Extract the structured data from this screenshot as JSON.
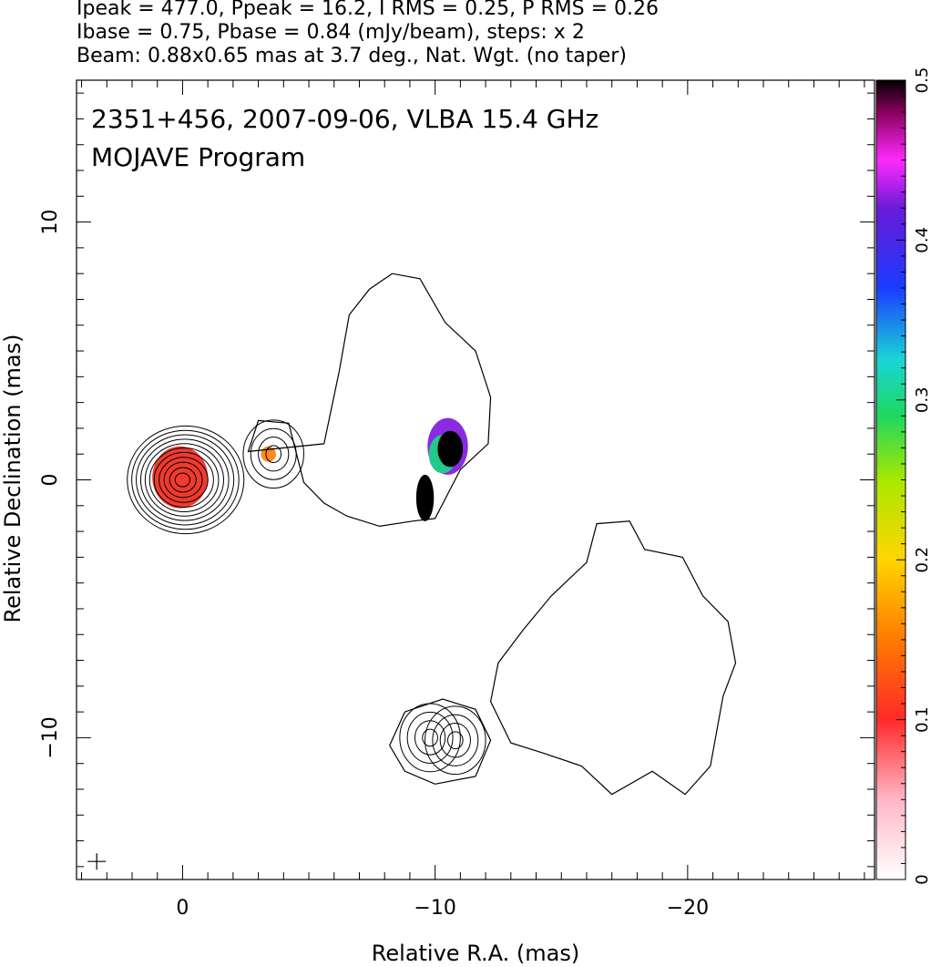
{
  "header": {
    "line1": "Ipeak = 477.0, Ppeak = 16.2, I RMS = 0.25, P RMS = 0.26",
    "line2": "Ibase = 0.75, Pbase = 0.84 (mJy/beam), steps: x 2",
    "line3": "Beam: 0.88x0.65 mas at 3.7 deg., Nat. Wgt. (no taper)"
  },
  "chart_data": {
    "type": "contour",
    "source_label": "2351+456, 2007-09-06, VLBA 15.4 GHz",
    "program_label": "MOJAVE Program",
    "xlabel": "Relative R.A. (mas)",
    "ylabel": "Relative Declination (mas)",
    "xlim": [
      4.2,
      -27.4
    ],
    "ylim": [
      -15.5,
      15.5
    ],
    "x_ticks": [
      {
        "value": 0,
        "label": "0"
      },
      {
        "value": -10,
        "label": "−10"
      },
      {
        "value": -20,
        "label": "−20"
      }
    ],
    "y_ticks": [
      {
        "value": 10,
        "label": "10"
      },
      {
        "value": 0,
        "label": "0"
      },
      {
        "value": -10,
        "label": "−10"
      }
    ],
    "colorbar": {
      "range": [
        0,
        0.5
      ],
      "ticks": [
        {
          "value": 0,
          "label": "0"
        },
        {
          "value": 0.1,
          "label": "0.1"
        },
        {
          "value": 0.2,
          "label": "0.2"
        },
        {
          "value": 0.3,
          "label": "0.3"
        },
        {
          "value": 0.4,
          "label": "0.4"
        },
        {
          "value": 0.5,
          "label": "0.5"
        }
      ]
    },
    "core": {
      "x": 0,
      "y": 0,
      "radii": [
        0.28,
        0.5,
        0.72,
        0.92,
        1.12,
        1.3,
        1.48,
        1.66,
        1.84,
        2.02,
        2.2
      ]
    },
    "knots": [
      {
        "x": -3.6,
        "y": 1.0,
        "radii": [
          0.3,
          0.6,
          0.9,
          1.2
        ]
      },
      {
        "x": -9.8,
        "y": -10.0,
        "radii": [
          0.3,
          0.6,
          0.9,
          1.2
        ]
      },
      {
        "x": -10.8,
        "y": -10.1,
        "radii": [
          0.3,
          0.6,
          0.9,
          1.2
        ]
      }
    ],
    "extended_emission": [
      {
        "name": "upper-jet",
        "points": [
          [
            -5.6,
            1.4
          ],
          [
            -6.2,
            4.2
          ],
          [
            -6.6,
            6.4
          ],
          [
            -7.4,
            7.4
          ],
          [
            -8.3,
            8.0
          ],
          [
            -9.4,
            7.8
          ],
          [
            -10.4,
            6.1
          ],
          [
            -11.6,
            5.0
          ],
          [
            -12.2,
            3.2
          ],
          [
            -12.1,
            1.4
          ],
          [
            -11.0,
            0.4
          ],
          [
            -10.0,
            -1.5
          ],
          [
            -9.1,
            -1.6
          ],
          [
            -7.8,
            -1.8
          ],
          [
            -6.5,
            -1.4
          ],
          [
            -5.6,
            -0.9
          ],
          [
            -4.8,
            -0.1
          ],
          [
            -4.2,
            2.2
          ],
          [
            -3.0,
            2.3
          ],
          [
            -2.6,
            1.1
          ]
        ]
      },
      {
        "name": "lower-jet",
        "points": [
          [
            -12.5,
            -7.1
          ],
          [
            -13.5,
            -5.8
          ],
          [
            -14.6,
            -4.5
          ],
          [
            -16.0,
            -3.2
          ],
          [
            -16.4,
            -1.7
          ],
          [
            -17.7,
            -1.6
          ],
          [
            -18.3,
            -2.7
          ],
          [
            -19.8,
            -3.0
          ],
          [
            -20.6,
            -4.5
          ],
          [
            -21.6,
            -5.5
          ],
          [
            -21.9,
            -7.1
          ],
          [
            -21.4,
            -8.4
          ],
          [
            -20.9,
            -11.1
          ],
          [
            -19.9,
            -12.2
          ],
          [
            -18.6,
            -11.3
          ],
          [
            -17.0,
            -12.2
          ],
          [
            -15.8,
            -11.1
          ],
          [
            -14.3,
            -10.6
          ],
          [
            -13.0,
            -10.2
          ],
          [
            -12.2,
            -8.6
          ]
        ]
      },
      {
        "name": "lower-knot-envelope",
        "points": [
          [
            -8.2,
            -10.3
          ],
          [
            -8.8,
            -9.0
          ],
          [
            -10.3,
            -8.5
          ],
          [
            -11.6,
            -8.9
          ],
          [
            -12.2,
            -10.1
          ],
          [
            -11.6,
            -11.5
          ],
          [
            -10.0,
            -11.8
          ],
          [
            -8.8,
            -11.3
          ]
        ]
      }
    ],
    "polarization_regions": [
      {
        "name": "core-polarization",
        "x": 0.1,
        "y": 0.1,
        "rx": 1.1,
        "ry": 1.2,
        "color": "#f03a30"
      },
      {
        "name": "knot-polarization",
        "x": -3.4,
        "y": 1.0,
        "rx": 0.3,
        "ry": 0.3,
        "color": "#ff8c1a"
      },
      {
        "name": "jet-polarization-outer",
        "x": -10.5,
        "y": 1.3,
        "rx": 0.8,
        "ry": 1.1,
        "color": "#8a2be2"
      },
      {
        "name": "jet-polarization-inner",
        "x": -10.3,
        "y": 1.0,
        "rx": 0.55,
        "ry": 0.75,
        "color": "#22c98a"
      },
      {
        "name": "jet-polarization-core",
        "x": -10.6,
        "y": 1.2,
        "rx": 0.5,
        "ry": 0.7,
        "color": "#000000"
      },
      {
        "name": "jet-polarization-lower",
        "x": -9.6,
        "y": -0.7,
        "rx": 0.35,
        "ry": 0.9,
        "color": "#000000"
      }
    ],
    "beam_marker": {
      "x": 3.4,
      "y": -14.8
    }
  }
}
